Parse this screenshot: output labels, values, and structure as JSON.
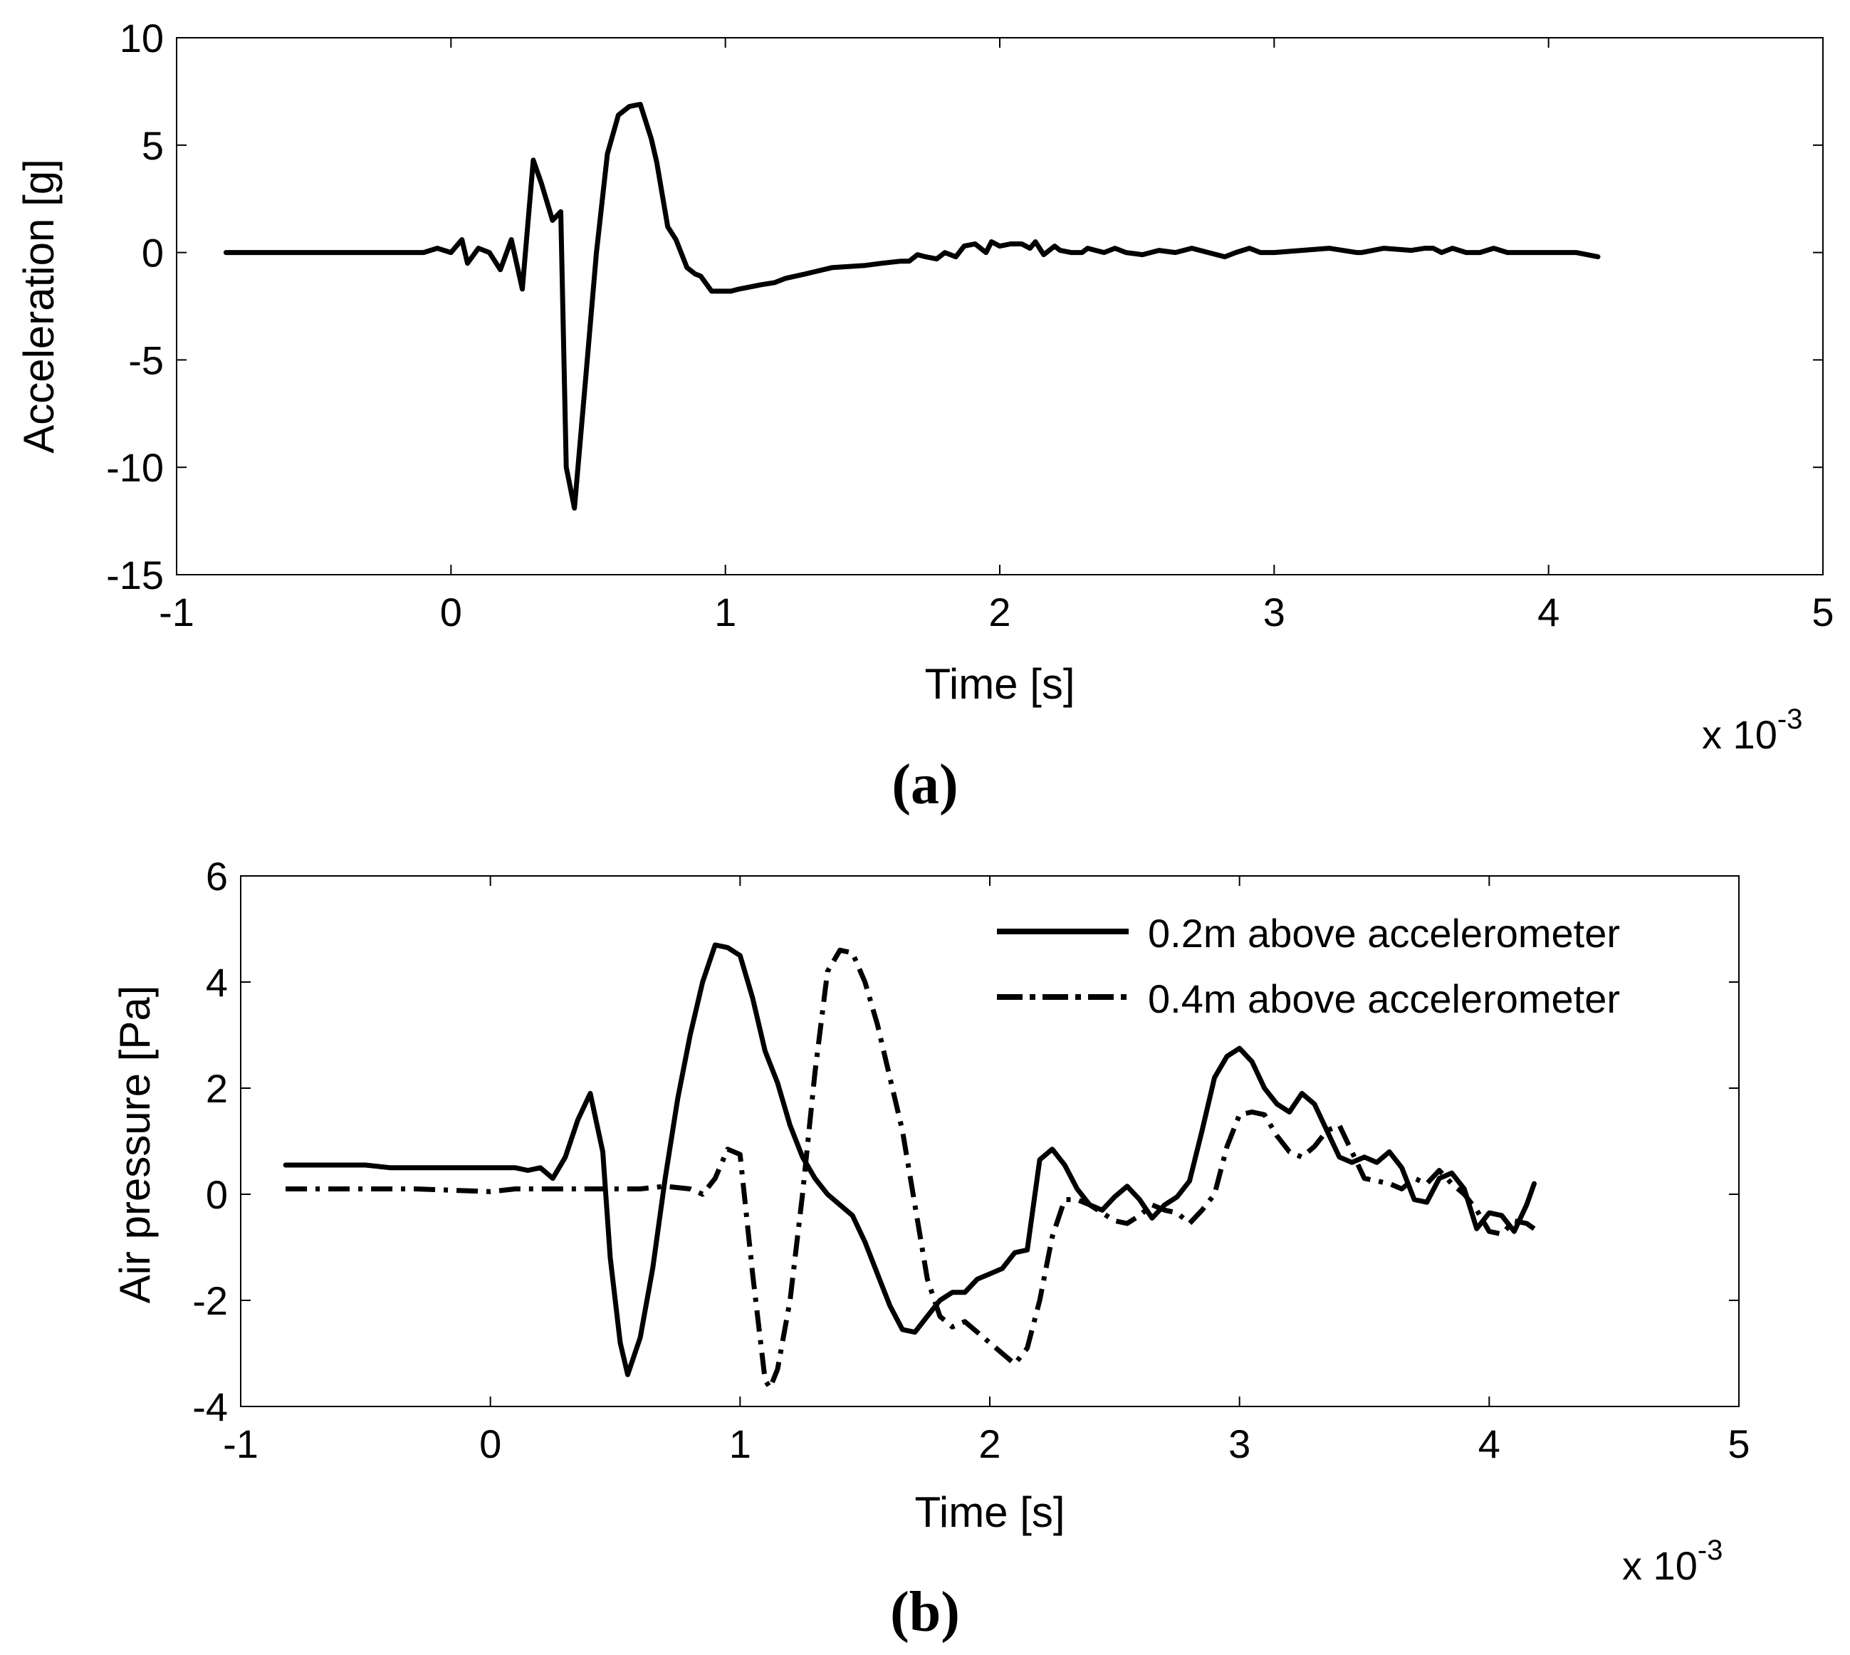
{
  "chart_data": [
    {
      "panel_label": "(a)",
      "type": "line",
      "xlabel": "Time [s]",
      "ylabel": "Acceleration [g]",
      "x_multiplier": "x 10",
      "x_multiplier_exp": "-3",
      "xlim": [
        -1,
        5
      ],
      "ylim": [
        -15,
        10
      ],
      "xticks": [
        -1,
        0,
        1,
        2,
        3,
        4,
        5
      ],
      "yticks": [
        -15,
        -10,
        -5,
        0,
        5,
        10
      ],
      "grid": false,
      "series": [
        {
          "style": "solid",
          "x": [
            -0.82,
            -0.1,
            -0.05,
            0.0,
            0.04,
            0.06,
            0.1,
            0.14,
            0.18,
            0.22,
            0.26,
            0.3,
            0.33,
            0.37,
            0.4,
            0.42,
            0.45,
            0.49,
            0.53,
            0.57,
            0.61,
            0.65,
            0.69,
            0.73,
            0.75,
            0.79,
            0.82,
            0.86,
            0.89,
            0.91,
            0.95,
            0.99,
            1.02,
            1.05,
            1.09,
            1.13,
            1.18,
            1.22,
            1.29,
            1.39,
            1.51,
            1.57,
            1.64,
            1.67,
            1.7,
            1.73,
            1.77,
            1.8,
            1.84,
            1.87,
            1.91,
            1.95,
            1.97,
            2.0,
            2.04,
            2.08,
            2.11,
            2.13,
            2.16,
            2.2,
            2.22,
            2.26,
            2.3,
            2.32,
            2.38,
            2.42,
            2.46,
            2.52,
            2.58,
            2.64,
            2.7,
            2.76,
            2.82,
            2.86,
            2.91,
            2.95,
            3.0,
            3.1,
            3.2,
            3.3,
            3.32,
            3.36,
            3.4,
            3.5,
            3.55,
            3.58,
            3.61,
            3.65,
            3.7,
            3.75,
            3.8,
            3.85,
            3.9,
            4.0,
            4.1,
            4.18
          ],
          "y": [
            0.0,
            0.0,
            0.2,
            0.0,
            0.6,
            -0.5,
            0.2,
            0.0,
            -0.8,
            0.6,
            -1.7,
            4.3,
            3.2,
            1.5,
            1.9,
            -10.0,
            -11.9,
            -6.0,
            0.0,
            4.6,
            6.4,
            6.8,
            6.9,
            5.3,
            4.2,
            1.2,
            0.6,
            -0.7,
            -1.0,
            -1.1,
            -1.8,
            -1.8,
            -1.8,
            -1.7,
            -1.6,
            -1.5,
            -1.4,
            -1.2,
            -1.0,
            -0.7,
            -0.6,
            -0.5,
            -0.4,
            -0.4,
            -0.1,
            -0.2,
            -0.3,
            0.0,
            -0.2,
            0.3,
            0.4,
            0.0,
            0.5,
            0.3,
            0.4,
            0.4,
            0.2,
            0.5,
            -0.1,
            0.3,
            0.1,
            0.0,
            0.0,
            0.2,
            0.0,
            0.2,
            0.0,
            -0.1,
            0.1,
            0.0,
            0.2,
            0.0,
            -0.2,
            0.0,
            0.2,
            0.0,
            0.0,
            0.1,
            0.2,
            0.0,
            0.0,
            0.1,
            0.2,
            0.1,
            0.2,
            0.2,
            0.0,
            0.2,
            0.0,
            0.0,
            0.2,
            0.0,
            0.0,
            0.0,
            0.0,
            -0.2
          ]
        }
      ]
    },
    {
      "panel_label": "(b)",
      "type": "line",
      "xlabel": "Time [s]",
      "ylabel": "Air pressure [Pa]",
      "x_multiplier": "x 10",
      "x_multiplier_exp": "-3",
      "xlim": [
        -1,
        5
      ],
      "ylim": [
        -4,
        6
      ],
      "xticks": [
        -1,
        0,
        1,
        2,
        3,
        4,
        5
      ],
      "yticks": [
        -4,
        -2,
        0,
        2,
        4,
        6
      ],
      "grid": false,
      "legend_position": "top-right",
      "series": [
        {
          "name": "0.2m above accelerometer",
          "style": "solid",
          "x": [
            -0.82,
            -0.5,
            -0.4,
            0.0,
            0.1,
            0.15,
            0.2,
            0.25,
            0.3,
            0.35,
            0.4,
            0.45,
            0.48,
            0.52,
            0.55,
            0.6,
            0.65,
            0.7,
            0.75,
            0.8,
            0.85,
            0.9,
            0.95,
            1.0,
            1.05,
            1.1,
            1.15,
            1.2,
            1.25,
            1.3,
            1.35,
            1.4,
            1.45,
            1.5,
            1.55,
            1.6,
            1.65,
            1.7,
            1.75,
            1.8,
            1.85,
            1.9,
            1.95,
            2.0,
            2.05,
            2.1,
            2.15,
            2.2,
            2.25,
            2.3,
            2.35,
            2.4,
            2.45,
            2.5,
            2.55,
            2.6,
            2.65,
            2.7,
            2.75,
            2.8,
            2.85,
            2.9,
            2.95,
            3.0,
            3.05,
            3.1,
            3.15,
            3.2,
            3.25,
            3.3,
            3.35,
            3.4,
            3.45,
            3.5,
            3.55,
            3.6,
            3.65,
            3.7,
            3.75,
            3.8,
            3.85,
            3.9,
            3.95,
            4.0,
            4.05,
            4.1,
            4.15,
            4.18
          ],
          "y": [
            0.55,
            0.55,
            0.5,
            0.5,
            0.5,
            0.45,
            0.5,
            0.3,
            0.7,
            1.4,
            1.9,
            0.8,
            -1.2,
            -2.8,
            -3.4,
            -2.7,
            -1.4,
            0.3,
            1.8,
            3.0,
            4.0,
            4.7,
            4.65,
            4.5,
            3.7,
            2.7,
            2.1,
            1.3,
            0.7,
            0.3,
            0.0,
            -0.2,
            -0.4,
            -0.9,
            -1.5,
            -2.1,
            -2.55,
            -2.6,
            -2.3,
            -2.0,
            -1.85,
            -1.85,
            -1.6,
            -1.5,
            -1.4,
            -1.1,
            -1.05,
            0.65,
            0.85,
            0.55,
            0.1,
            -0.2,
            -0.3,
            -0.05,
            0.15,
            -0.1,
            -0.45,
            -0.2,
            -0.05,
            0.25,
            1.2,
            2.2,
            2.6,
            2.75,
            2.5,
            2.0,
            1.7,
            1.55,
            1.9,
            1.7,
            1.2,
            0.7,
            0.6,
            0.7,
            0.6,
            0.8,
            0.5,
            -0.1,
            -0.15,
            0.3,
            0.4,
            0.1,
            -0.65,
            -0.35,
            -0.4,
            -0.7,
            -0.2,
            0.2
          ]
        },
        {
          "name": "0.4m above accelerometer",
          "style": "dashdot",
          "x": [
            -0.82,
            -0.3,
            0.0,
            0.1,
            0.2,
            0.3,
            0.4,
            0.5,
            0.6,
            0.7,
            0.8,
            0.85,
            0.9,
            0.95,
            1.0,
            1.05,
            1.1,
            1.12,
            1.15,
            1.2,
            1.25,
            1.3,
            1.35,
            1.4,
            1.45,
            1.5,
            1.55,
            1.6,
            1.65,
            1.7,
            1.75,
            1.8,
            1.85,
            1.9,
            1.95,
            2.0,
            2.05,
            2.1,
            2.15,
            2.2,
            2.25,
            2.3,
            2.35,
            2.4,
            2.45,
            2.5,
            2.55,
            2.6,
            2.65,
            2.7,
            2.75,
            2.8,
            2.85,
            2.9,
            2.95,
            3.0,
            3.05,
            3.1,
            3.15,
            3.2,
            3.25,
            3.3,
            3.35,
            3.4,
            3.45,
            3.5,
            3.55,
            3.6,
            3.65,
            3.7,
            3.75,
            3.8,
            3.85,
            3.9,
            3.95,
            4.0,
            4.05,
            4.1,
            4.15,
            4.18
          ],
          "y": [
            0.1,
            0.1,
            0.05,
            0.1,
            0.1,
            0.1,
            0.1,
            0.1,
            0.1,
            0.15,
            0.1,
            0.0,
            0.3,
            0.85,
            0.75,
            -1.5,
            -3.5,
            -3.65,
            -3.3,
            -2.0,
            0.0,
            2.3,
            4.2,
            4.6,
            4.55,
            4.0,
            3.2,
            2.2,
            1.2,
            -0.2,
            -1.6,
            -2.3,
            -2.5,
            -2.4,
            -2.6,
            -2.8,
            -3.0,
            -3.2,
            -2.9,
            -2.0,
            -0.8,
            -0.1,
            -0.1,
            -0.2,
            -0.35,
            -0.5,
            -0.55,
            -0.4,
            -0.2,
            -0.3,
            -0.35,
            -0.55,
            -0.3,
            0.0,
            0.9,
            1.5,
            1.55,
            1.5,
            1.1,
            0.8,
            0.7,
            0.9,
            1.2,
            1.3,
            0.8,
            0.3,
            0.25,
            0.2,
            0.1,
            0.3,
            0.2,
            0.45,
            0.2,
            0.0,
            -0.3,
            -0.7,
            -0.75,
            -0.5,
            -0.55,
            -0.65
          ]
        }
      ]
    }
  ]
}
